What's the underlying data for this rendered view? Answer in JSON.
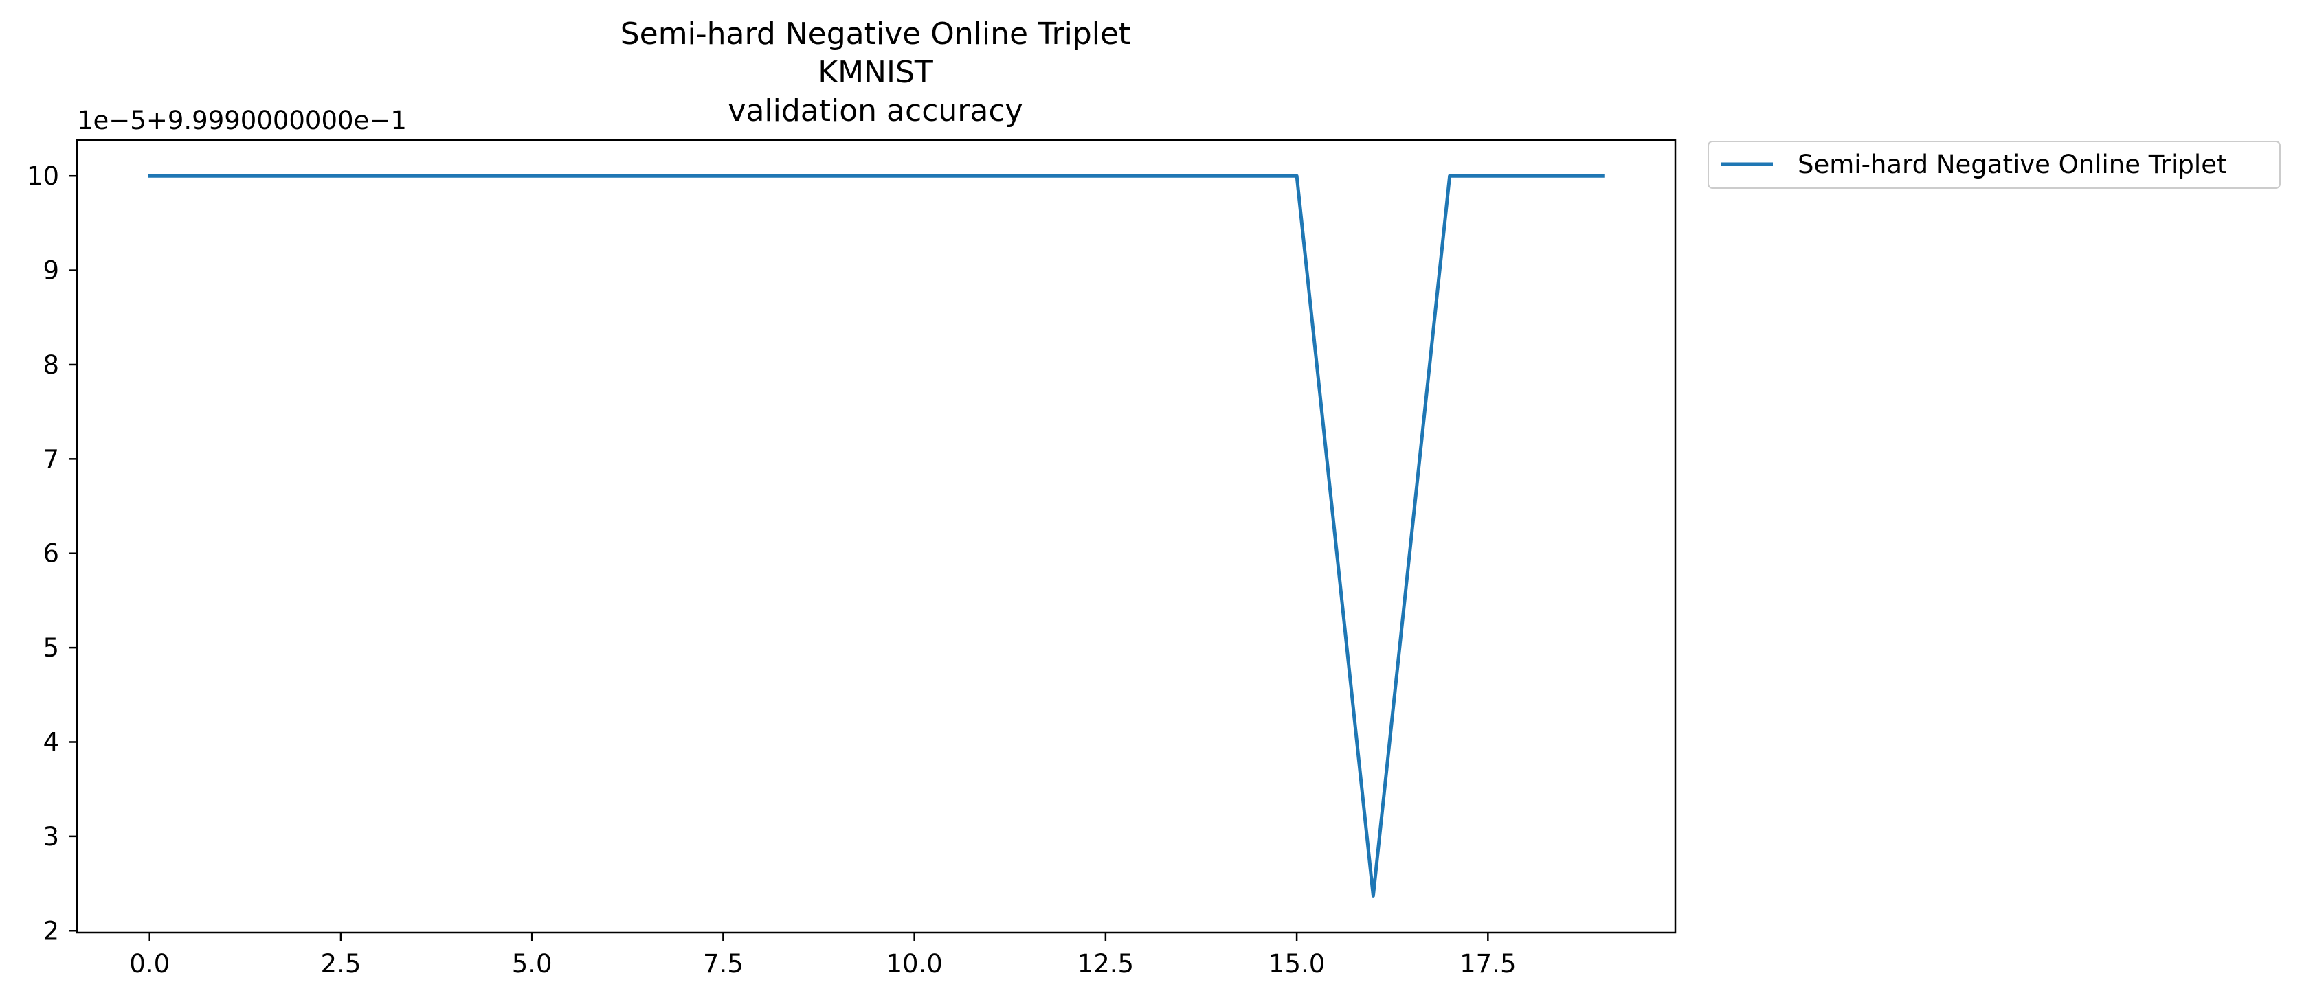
{
  "chart_data": {
    "type": "line",
    "title_lines": [
      "Semi-hard Negative Online Triplet",
      "KMNIST",
      "validation accuracy"
    ],
    "xlabel": "",
    "ylabel": "",
    "y_offset_label": "1e−5+9.9990000000e−1",
    "xlim": [
      -0.95,
      19.95
    ],
    "ylim": [
      1.98,
      10.38
    ],
    "x_ticks": [
      0.0,
      2.5,
      5.0,
      7.5,
      10.0,
      12.5,
      15.0,
      17.5
    ],
    "x_tick_labels": [
      "0.0",
      "2.5",
      "5.0",
      "7.5",
      "10.0",
      "12.5",
      "15.0",
      "17.5"
    ],
    "y_ticks": [
      2,
      3,
      4,
      5,
      6,
      7,
      8,
      9,
      10
    ],
    "y_tick_labels": [
      "2",
      "3",
      "4",
      "5",
      "6",
      "7",
      "8",
      "9",
      "10"
    ],
    "grid": false,
    "legend_position": "outside-top-right",
    "series": [
      {
        "name": "Semi-hard Negative Online Triplet",
        "color": "#1f77b4",
        "x": [
          0,
          1,
          2,
          3,
          4,
          5,
          6,
          7,
          8,
          9,
          10,
          11,
          12,
          13,
          14,
          15,
          16,
          17,
          18,
          19
        ],
        "y": [
          10,
          10,
          10,
          10,
          10,
          10,
          10,
          10,
          10,
          10,
          10,
          10,
          10,
          10,
          10,
          10,
          2.37,
          10,
          10,
          10
        ]
      }
    ]
  }
}
